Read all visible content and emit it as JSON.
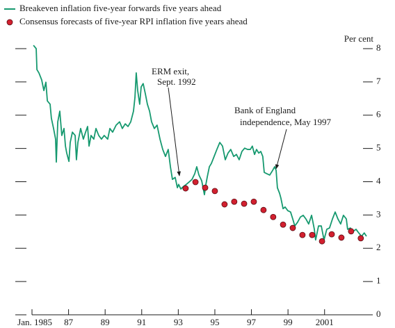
{
  "chart_data": {
    "type": "line",
    "y_axis_label": "Per cent",
    "xlim": [
      1985,
      2003.33
    ],
    "ylim": [
      0,
      8
    ],
    "yticks": [
      0,
      1,
      2,
      3,
      4,
      5,
      6,
      7,
      8
    ],
    "xticks": [
      {
        "value": 1985,
        "label": "Jan. 1985"
      },
      {
        "value": 1987,
        "label": "87"
      },
      {
        "value": 1989,
        "label": "89"
      },
      {
        "value": 1991,
        "label": "91"
      },
      {
        "value": 1993,
        "label": "93"
      },
      {
        "value": 1995,
        "label": "95"
      },
      {
        "value": 1997,
        "label": "97"
      },
      {
        "value": 1999,
        "label": "99"
      },
      2001
    ],
    "legend": "top-left",
    "annotations": [
      {
        "lines": [
          "ERM exit,",
          "Sept. 1992"
        ]
      },
      {
        "lines": [
          "Bank of England",
          "independence, May 1997"
        ]
      }
    ],
    "series": [
      {
        "name": "Breakeven inflation five-year forwards five years ahead",
        "type": "line",
        "color": "#16996f",
        "x": [
          1985.08,
          1985.23,
          1985.27,
          1985.38,
          1985.53,
          1985.65,
          1985.76,
          1985.84,
          1985.99,
          1986.06,
          1986.18,
          1986.29,
          1986.33,
          1986.41,
          1986.52,
          1986.63,
          1986.75,
          1986.83,
          1986.9,
          1987.02,
          1987.09,
          1987.21,
          1987.36,
          1987.43,
          1987.51,
          1987.66,
          1987.81,
          1987.93,
          1988.04,
          1988.12,
          1988.23,
          1988.38,
          1988.5,
          1988.65,
          1988.8,
          1988.95,
          1989.14,
          1989.26,
          1989.41,
          1989.6,
          1989.79,
          1989.94,
          1990.1,
          1990.25,
          1990.4,
          1990.55,
          1990.63,
          1990.7,
          1990.78,
          1990.89,
          1990.97,
          1991.08,
          1991.2,
          1991.31,
          1991.43,
          1991.54,
          1991.69,
          1991.84,
          1992.0,
          1992.15,
          1992.3,
          1992.45,
          1992.57,
          1992.68,
          1992.83,
          1992.95,
          1993.02,
          1993.14,
          1993.29,
          1993.44,
          1993.59,
          1993.75,
          1993.9,
          1994.01,
          1994.13,
          1994.28,
          1994.43,
          1994.51,
          1994.58,
          1994.7,
          1994.81,
          1994.96,
          1995.11,
          1995.27,
          1995.42,
          1995.57,
          1995.72,
          1995.87,
          1996.03,
          1996.18,
          1996.33,
          1996.48,
          1996.63,
          1996.79,
          1996.94,
          1997.05,
          1997.17,
          1997.28,
          1997.4,
          1997.51,
          1997.62,
          1997.7,
          1997.85,
          1998.0,
          1998.16,
          1998.27,
          1998.35,
          1998.42,
          1998.54,
          1998.61,
          1998.73,
          1998.84,
          1998.99,
          1999.14,
          1999.26,
          1999.37,
          1999.52,
          1999.68,
          1999.83,
          1999.98,
          2000.13,
          2000.29,
          2000.44,
          2000.51,
          2000.59,
          2000.67,
          2000.82,
          2000.97,
          2001.12,
          2001.27,
          2001.43,
          2001.58,
          2001.73,
          2001.88,
          2002.03,
          2002.19,
          2002.26,
          2002.41,
          2002.57,
          2002.72,
          2002.87,
          2003.02,
          2003.17,
          2003.29
        ],
        "values": [
          8.1,
          8.0,
          7.37,
          7.27,
          7.06,
          6.74,
          6.99,
          6.43,
          6.33,
          5.91,
          5.6,
          5.28,
          4.59,
          5.8,
          6.12,
          5.39,
          5.6,
          5.07,
          4.86,
          4.61,
          5.18,
          5.49,
          5.39,
          4.66,
          5.18,
          5.6,
          5.28,
          5.49,
          5.66,
          5.07,
          5.39,
          5.28,
          5.6,
          5.39,
          5.28,
          5.39,
          5.28,
          5.6,
          5.49,
          5.7,
          5.8,
          5.6,
          5.74,
          5.66,
          5.8,
          6.12,
          6.53,
          7.27,
          6.74,
          6.33,
          6.85,
          6.95,
          6.64,
          6.33,
          6.12,
          5.8,
          5.6,
          5.7,
          5.28,
          4.97,
          4.76,
          4.97,
          4.45,
          4.07,
          4.13,
          3.82,
          3.92,
          3.78,
          3.86,
          3.92,
          3.99,
          4.07,
          4.24,
          4.45,
          4.2,
          4.03,
          3.61,
          3.92,
          4.13,
          4.45,
          4.55,
          4.76,
          4.97,
          5.18,
          5.07,
          4.66,
          4.86,
          4.97,
          4.76,
          4.82,
          4.66,
          4.91,
          5.01,
          4.97,
          4.97,
          5.07,
          4.82,
          4.97,
          4.86,
          4.91,
          4.76,
          4.28,
          4.24,
          4.2,
          4.34,
          4.45,
          4.34,
          3.82,
          3.65,
          3.51,
          3.19,
          3.24,
          3.13,
          3.09,
          2.88,
          2.67,
          2.78,
          2.94,
          2.99,
          2.88,
          2.73,
          2.99,
          2.57,
          2.25,
          2.46,
          2.67,
          2.67,
          2.25,
          2.57,
          2.61,
          2.88,
          3.09,
          2.88,
          2.73,
          2.99,
          2.88,
          2.57,
          2.61,
          2.51,
          2.57,
          2.46,
          2.36,
          2.46,
          2.36
        ]
      },
      {
        "name": "Consensus forecasts of five-year RPI inflation five years ahead",
        "type": "scatter",
        "color": "#d2202f",
        "x": [
          1993.4,
          1993.94,
          1994.47,
          1995.0,
          1995.53,
          1996.06,
          1996.6,
          1997.13,
          1997.66,
          1998.19,
          1998.73,
          1999.26,
          1999.79,
          2000.32,
          2000.86,
          2001.39,
          2001.92,
          2002.45,
          2002.98
        ],
        "values": [
          3.8,
          3.99,
          3.82,
          3.72,
          3.32,
          3.4,
          3.34,
          3.4,
          3.15,
          2.94,
          2.71,
          2.61,
          2.4,
          2.4,
          2.21,
          2.42,
          2.32,
          2.51,
          2.3
        ]
      }
    ]
  }
}
